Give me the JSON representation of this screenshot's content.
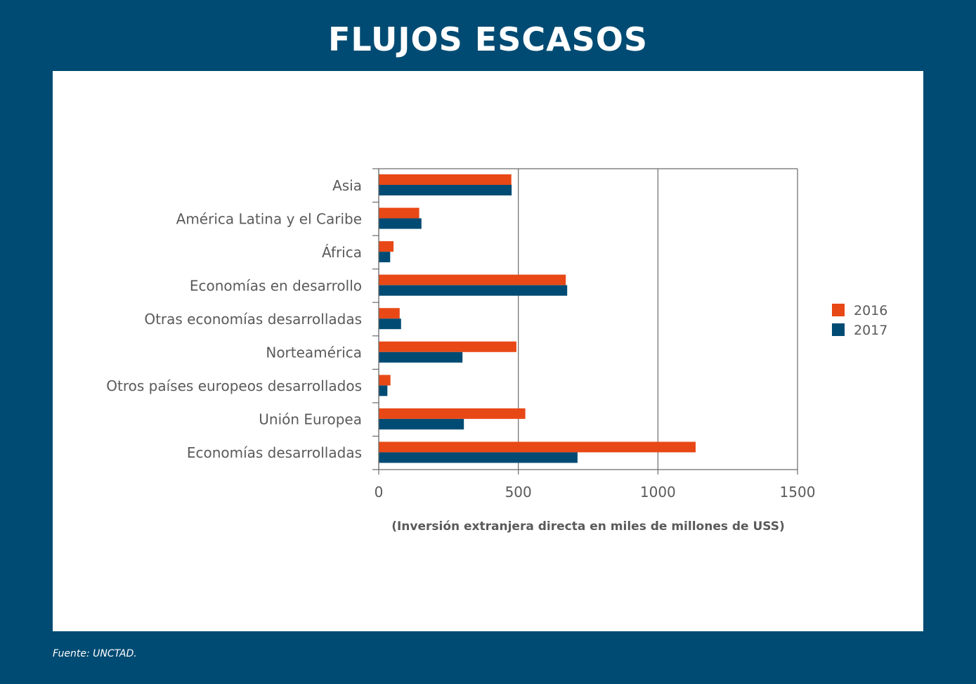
{
  "title": "FLUJOS ESCASOS",
  "source": "Fuente: UNCTAD.",
  "colors": {
    "background": "#004b73",
    "series_2016": "#e84816",
    "series_2017": "#004b73"
  },
  "chart_data": {
    "type": "bar",
    "orientation": "horizontal",
    "title": "",
    "xlabel": "(Inversión extranjera directa en miles de millones de USS)",
    "ylabel": "",
    "xlim": [
      0,
      1500
    ],
    "xticks": [
      "0",
      "500",
      "1000",
      "1500"
    ],
    "grid": true,
    "legend_position": "right",
    "categories": [
      "Asia",
      "América Latina y el Caribe",
      "África",
      "Economías en desarrollo",
      "Otras economías desarrolladas",
      "Norteamérica",
      "Otros países europeos desarrollados",
      "Unión Europea",
      "Economías desarrolladas"
    ],
    "series": [
      {
        "name": "2016",
        "color": "#e84816",
        "values": [
          475,
          145,
          53,
          670,
          75,
          493,
          42,
          525,
          1135
        ]
      },
      {
        "name": "2017",
        "color": "#004b73",
        "values": [
          476,
          153,
          41,
          675,
          80,
          300,
          31,
          305,
          712
        ]
      }
    ]
  }
}
